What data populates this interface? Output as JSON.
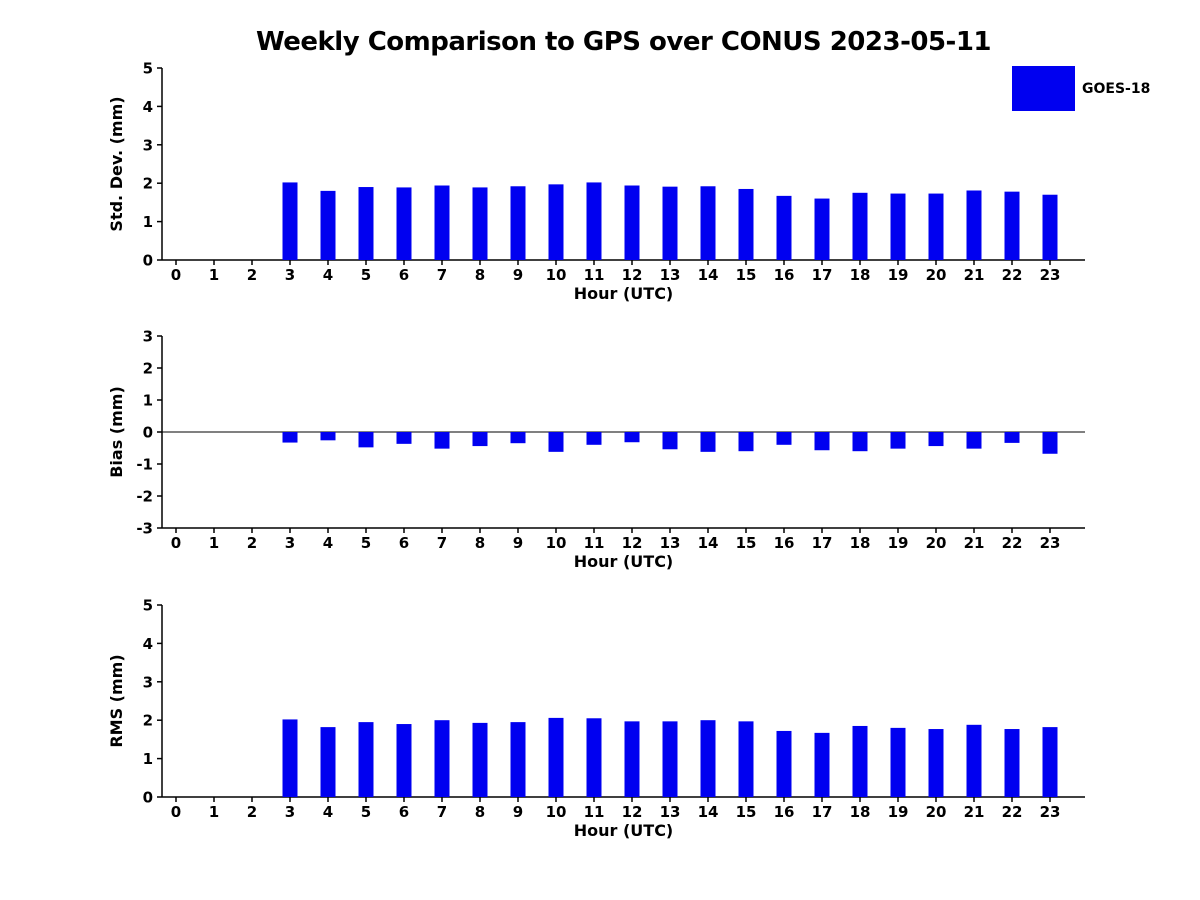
{
  "title": "Weekly Comparison to GPS over CONUS 2023-05-11",
  "legend": {
    "label": "GOES-18",
    "color": "#0000f0"
  },
  "colors": {
    "bar": "#0000f0",
    "axis": "#000000",
    "text": "#000000"
  },
  "chart_data": [
    {
      "type": "bar",
      "series_name": "GOES-18",
      "ylabel": "Std. Dev. (mm)",
      "xlabel": "Hour (UTC)",
      "categories": [
        "0",
        "1",
        "2",
        "3",
        "4",
        "5",
        "6",
        "7",
        "8",
        "9",
        "10",
        "11",
        "12",
        "13",
        "14",
        "15",
        "16",
        "17",
        "18",
        "19",
        "20",
        "21",
        "22",
        "23"
      ],
      "values": [
        null,
        null,
        null,
        2.02,
        1.8,
        1.9,
        1.89,
        1.94,
        1.89,
        1.92,
        1.97,
        2.02,
        1.94,
        1.91,
        1.92,
        1.85,
        1.67,
        1.6,
        1.75,
        1.73,
        1.73,
        1.81,
        1.78,
        1.7
      ],
      "ylim": [
        0,
        5
      ],
      "yticks": [
        0,
        1,
        2,
        3,
        4,
        5
      ],
      "grid": false,
      "zero_line": false
    },
    {
      "type": "bar",
      "series_name": "GOES-18",
      "ylabel": "Bias (mm)",
      "xlabel": "Hour (UTC)",
      "categories": [
        "0",
        "1",
        "2",
        "3",
        "4",
        "5",
        "6",
        "7",
        "8",
        "9",
        "10",
        "11",
        "12",
        "13",
        "14",
        "15",
        "16",
        "17",
        "18",
        "19",
        "20",
        "21",
        "22",
        "23"
      ],
      "values": [
        null,
        null,
        null,
        -0.33,
        -0.26,
        -0.48,
        -0.37,
        -0.52,
        -0.44,
        -0.35,
        -0.62,
        -0.4,
        -0.32,
        -0.54,
        -0.62,
        -0.6,
        -0.4,
        -0.57,
        -0.6,
        -0.52,
        -0.44,
        -0.52,
        -0.34,
        -0.68
      ],
      "ylim": [
        -3,
        3
      ],
      "yticks": [
        -3,
        -2,
        -1,
        0,
        1,
        2,
        3
      ],
      "grid": false,
      "zero_line": true
    },
    {
      "type": "bar",
      "series_name": "GOES-18",
      "ylabel": "RMS (mm)",
      "xlabel": "Hour (UTC)",
      "categories": [
        "0",
        "1",
        "2",
        "3",
        "4",
        "5",
        "6",
        "7",
        "8",
        "9",
        "10",
        "11",
        "12",
        "13",
        "14",
        "15",
        "16",
        "17",
        "18",
        "19",
        "20",
        "21",
        "22",
        "23"
      ],
      "values": [
        null,
        null,
        null,
        2.02,
        1.82,
        1.95,
        1.9,
        2.0,
        1.93,
        1.95,
        2.06,
        2.05,
        1.97,
        1.97,
        2.0,
        1.97,
        1.72,
        1.67,
        1.85,
        1.8,
        1.77,
        1.88,
        1.77,
        1.82
      ],
      "ylim": [
        0,
        5
      ],
      "yticks": [
        0,
        1,
        2,
        3,
        4,
        5
      ],
      "grid": false,
      "zero_line": false
    }
  ]
}
